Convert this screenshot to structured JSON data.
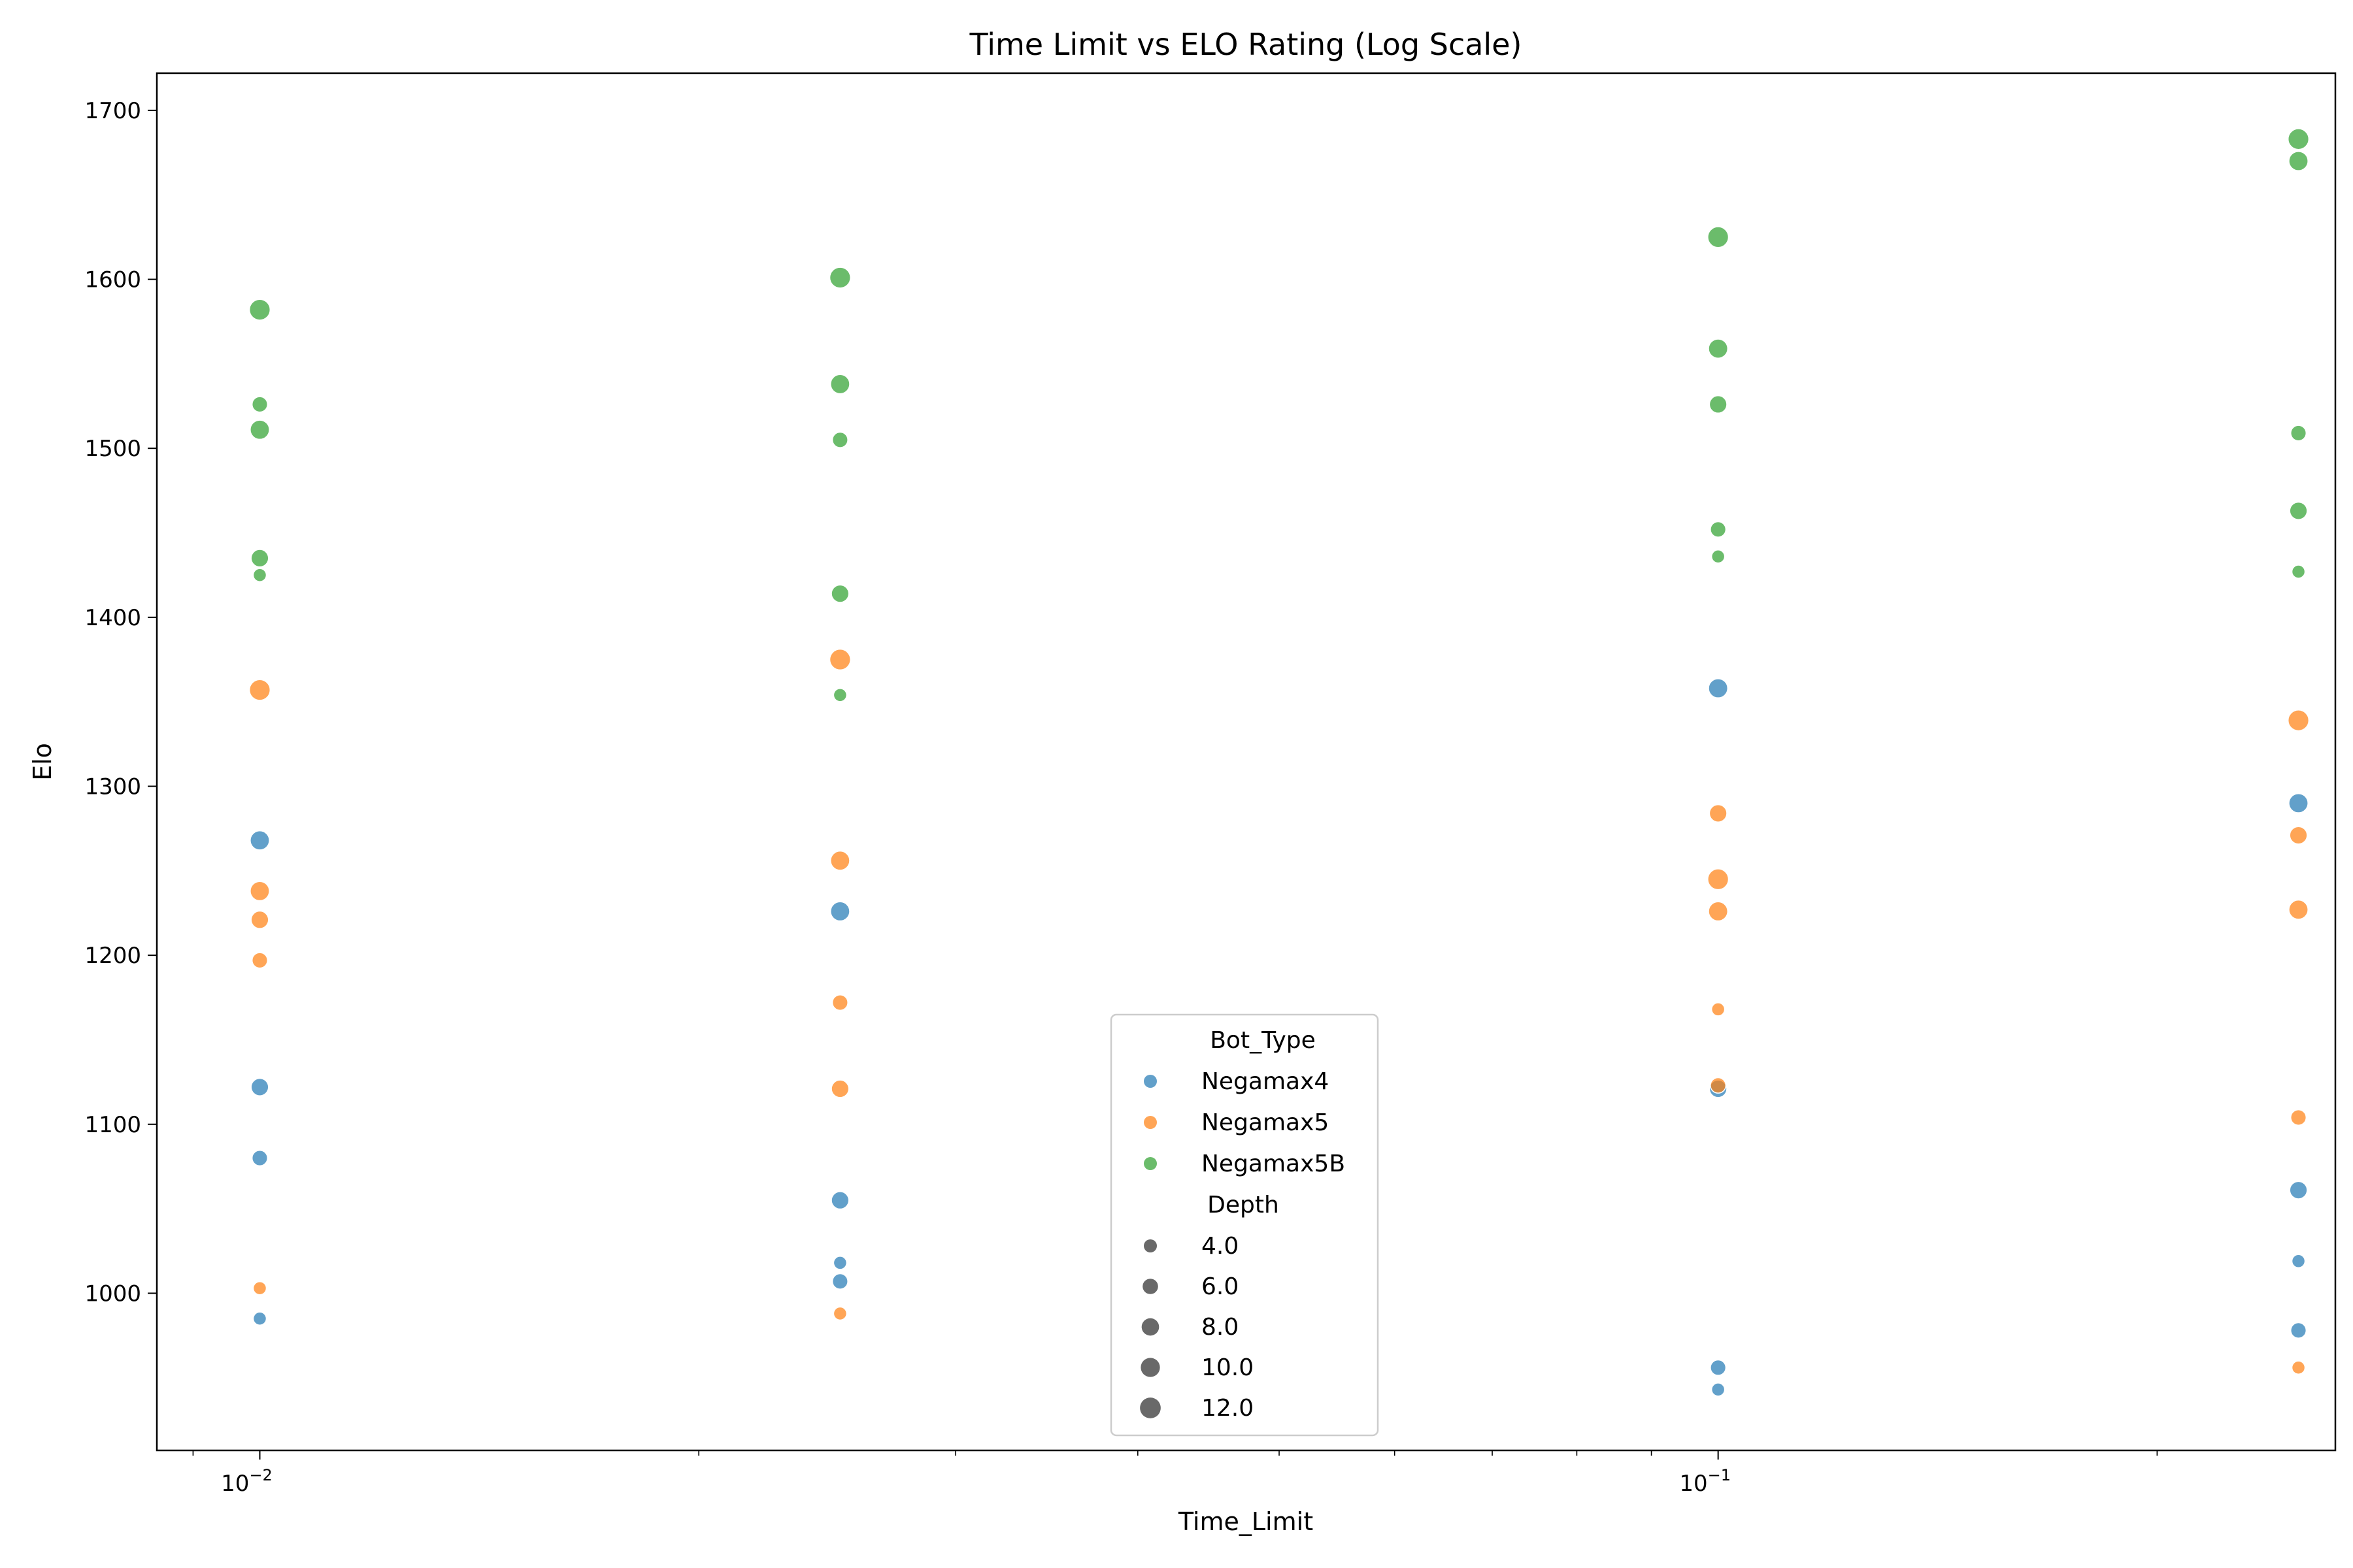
{
  "chart_data": {
    "type": "scatter",
    "title": "Time Limit vs ELO Rating (Log Scale)",
    "xlabel": "Time_Limit",
    "ylabel": "Elo",
    "xscale": "log",
    "xlim": [
      0.0085,
      0.265
    ],
    "ylim": [
      907,
      1722
    ],
    "x_ticks": [
      0.01,
      0.1
    ],
    "x_tick_labels": [
      {
        "base": "10",
        "exp": "−2"
      },
      {
        "base": "10",
        "exp": "−1"
      }
    ],
    "y_ticks": [
      1000,
      1100,
      1200,
      1300,
      1400,
      1500,
      1600,
      1700
    ],
    "y_tick_labels": [
      "1000",
      "1100",
      "1200",
      "1300",
      "1400",
      "1500",
      "1600",
      "1700"
    ],
    "grid": false,
    "legend_placement": "bottom-center",
    "legend": {
      "hue_title": "Bot_Type",
      "size_title": "Depth",
      "size_entries": [
        {
          "label": "4.0",
          "value": 4
        },
        {
          "label": "6.0",
          "value": 6
        },
        {
          "label": "8.0",
          "value": 8
        },
        {
          "label": "10.0",
          "value": 10
        },
        {
          "label": "12.0",
          "value": 12
        }
      ]
    },
    "series": [
      {
        "name": "Negamax4",
        "color": "#1f77b4",
        "points": [
          {
            "x": 0.01,
            "y": 1268,
            "depth": 10
          },
          {
            "x": 0.01,
            "y": 1122,
            "depth": 8
          },
          {
            "x": 0.01,
            "y": 1080,
            "depth": 6
          },
          {
            "x": 0.01,
            "y": 985,
            "depth": 4
          },
          {
            "x": 0.025,
            "y": 1226,
            "depth": 10
          },
          {
            "x": 0.025,
            "y": 1055,
            "depth": 8
          },
          {
            "x": 0.025,
            "y": 1018,
            "depth": 4
          },
          {
            "x": 0.025,
            "y": 1007,
            "depth": 6
          },
          {
            "x": 0.1,
            "y": 1358,
            "depth": 10
          },
          {
            "x": 0.1,
            "y": 1121,
            "depth": 8
          },
          {
            "x": 0.1,
            "y": 956,
            "depth": 6
          },
          {
            "x": 0.1,
            "y": 943,
            "depth": 4
          },
          {
            "x": 0.25,
            "y": 1290,
            "depth": 10
          },
          {
            "x": 0.25,
            "y": 1061,
            "depth": 8
          },
          {
            "x": 0.25,
            "y": 1019,
            "depth": 4
          },
          {
            "x": 0.25,
            "y": 978,
            "depth": 6
          }
        ]
      },
      {
        "name": "Negamax5",
        "color": "#ff7f0e",
        "points": [
          {
            "x": 0.01,
            "y": 1357,
            "depth": 12
          },
          {
            "x": 0.01,
            "y": 1238,
            "depth": 10
          },
          {
            "x": 0.01,
            "y": 1221,
            "depth": 8
          },
          {
            "x": 0.01,
            "y": 1197,
            "depth": 6
          },
          {
            "x": 0.01,
            "y": 1003,
            "depth": 4
          },
          {
            "x": 0.025,
            "y": 1375,
            "depth": 12
          },
          {
            "x": 0.025,
            "y": 1256,
            "depth": 10
          },
          {
            "x": 0.025,
            "y": 1172,
            "depth": 6
          },
          {
            "x": 0.025,
            "y": 1121,
            "depth": 8
          },
          {
            "x": 0.025,
            "y": 988,
            "depth": 4
          },
          {
            "x": 0.1,
            "y": 1284,
            "depth": 8
          },
          {
            "x": 0.1,
            "y": 1245,
            "depth": 12
          },
          {
            "x": 0.1,
            "y": 1226,
            "depth": 10
          },
          {
            "x": 0.1,
            "y": 1168,
            "depth": 4
          },
          {
            "x": 0.1,
            "y": 1123,
            "depth": 6
          },
          {
            "x": 0.25,
            "y": 1339,
            "depth": 12
          },
          {
            "x": 0.25,
            "y": 1271,
            "depth": 8
          },
          {
            "x": 0.25,
            "y": 1227,
            "depth": 10
          },
          {
            "x": 0.25,
            "y": 1104,
            "depth": 6
          },
          {
            "x": 0.25,
            "y": 956,
            "depth": 4
          }
        ]
      },
      {
        "name": "Negamax5B",
        "color": "#2ca02c",
        "points": [
          {
            "x": 0.01,
            "y": 1582,
            "depth": 12
          },
          {
            "x": 0.01,
            "y": 1526,
            "depth": 6
          },
          {
            "x": 0.01,
            "y": 1511,
            "depth": 10
          },
          {
            "x": 0.01,
            "y": 1435,
            "depth": 8
          },
          {
            "x": 0.01,
            "y": 1425,
            "depth": 4
          },
          {
            "x": 0.025,
            "y": 1601,
            "depth": 12
          },
          {
            "x": 0.025,
            "y": 1538,
            "depth": 10
          },
          {
            "x": 0.025,
            "y": 1505,
            "depth": 6
          },
          {
            "x": 0.025,
            "y": 1414,
            "depth": 8
          },
          {
            "x": 0.025,
            "y": 1354,
            "depth": 4
          },
          {
            "x": 0.1,
            "y": 1625,
            "depth": 12
          },
          {
            "x": 0.1,
            "y": 1559,
            "depth": 10
          },
          {
            "x": 0.1,
            "y": 1526,
            "depth": 8
          },
          {
            "x": 0.1,
            "y": 1452,
            "depth": 6
          },
          {
            "x": 0.1,
            "y": 1436,
            "depth": 4
          },
          {
            "x": 0.25,
            "y": 1683,
            "depth": 12
          },
          {
            "x": 0.25,
            "y": 1670,
            "depth": 10
          },
          {
            "x": 0.25,
            "y": 1509,
            "depth": 6
          },
          {
            "x": 0.25,
            "y": 1463,
            "depth": 8
          },
          {
            "x": 0.25,
            "y": 1427,
            "depth": 4
          }
        ]
      }
    ]
  }
}
